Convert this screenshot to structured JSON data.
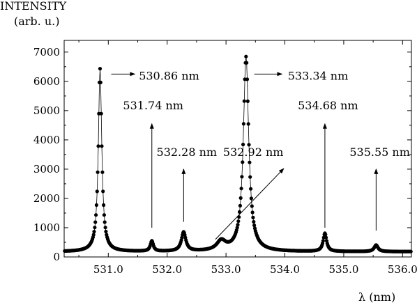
{
  "chart_data": {
    "type": "scatter",
    "ylabel_line1": "INTENSITY",
    "ylabel_line2": "(arb. u.)",
    "xlabel": "λ (nm)",
    "xlim": [
      530.25,
      536.15
    ],
    "ylim": [
      0,
      7400
    ],
    "xticks": [
      531.0,
      532.0,
      533.0,
      534.0,
      535.0,
      536.0
    ],
    "xtick_labels": [
      "531.0",
      "532.0",
      "533.0",
      "534.0",
      "535.0",
      "536.0"
    ],
    "yticks": [
      0,
      1000,
      2000,
      3000,
      4000,
      5000,
      6000,
      7000
    ],
    "ytick_labels": [
      "0",
      "1000",
      "2000",
      "3000",
      "4000",
      "5000",
      "6000",
      "7000"
    ],
    "baseline": 180,
    "peaks": [
      {
        "center": 530.86,
        "height": 6250,
        "width": 0.035,
        "label": "530.86 nm"
      },
      {
        "center": 531.74,
        "height": 350,
        "width": 0.03,
        "label": "531.74 nm"
      },
      {
        "center": 532.28,
        "height": 650,
        "width": 0.045,
        "label": "532.28 nm"
      },
      {
        "center": 532.92,
        "height": 320,
        "width": 0.09,
        "label": "532.92 nm"
      },
      {
        "center": 533.34,
        "height": 6650,
        "width": 0.055,
        "label": "533.34 nm"
      },
      {
        "center": 534.68,
        "height": 620,
        "width": 0.035,
        "label": "534.68 nm"
      },
      {
        "center": 535.55,
        "height": 220,
        "width": 0.04,
        "label": "535.55 nm"
      }
    ],
    "annotations": [
      {
        "text": "530.86 nm",
        "tx": 531.52,
        "ty": 6050,
        "arrow": {
          "x1": 531.05,
          "y1": 6250,
          "x2": 531.45,
          "y2": 6250
        }
      },
      {
        "text": "531.74 nm",
        "tx": 531.25,
        "ty": 5050,
        "arrow": {
          "x1": 531.74,
          "y1": 1000,
          "x2": 531.74,
          "y2": 4550
        }
      },
      {
        "text": "532.28 nm",
        "tx": 531.82,
        "ty": 3450,
        "arrow": {
          "x1": 532.28,
          "y1": 1200,
          "x2": 532.28,
          "y2": 3000
        }
      },
      {
        "text": "532.92 nm",
        "tx": 532.95,
        "ty": 3450,
        "arrow": {
          "x1": 532.82,
          "y1": 600,
          "x2": 533.98,
          "y2": 3020
        }
      },
      {
        "text": "533.34 nm",
        "tx": 534.05,
        "ty": 6050,
        "arrow": {
          "x1": 533.48,
          "y1": 6250,
          "x2": 533.95,
          "y2": 6250
        }
      },
      {
        "text": "534.68 nm",
        "tx": 534.22,
        "ty": 5050,
        "arrow": {
          "x1": 534.68,
          "y1": 1000,
          "x2": 534.68,
          "y2": 4550
        }
      },
      {
        "text": "535.55 nm",
        "tx": 535.1,
        "ty": 3450,
        "arrow": {
          "x1": 535.55,
          "y1": 900,
          "x2": 535.55,
          "y2": 3000
        }
      }
    ]
  }
}
